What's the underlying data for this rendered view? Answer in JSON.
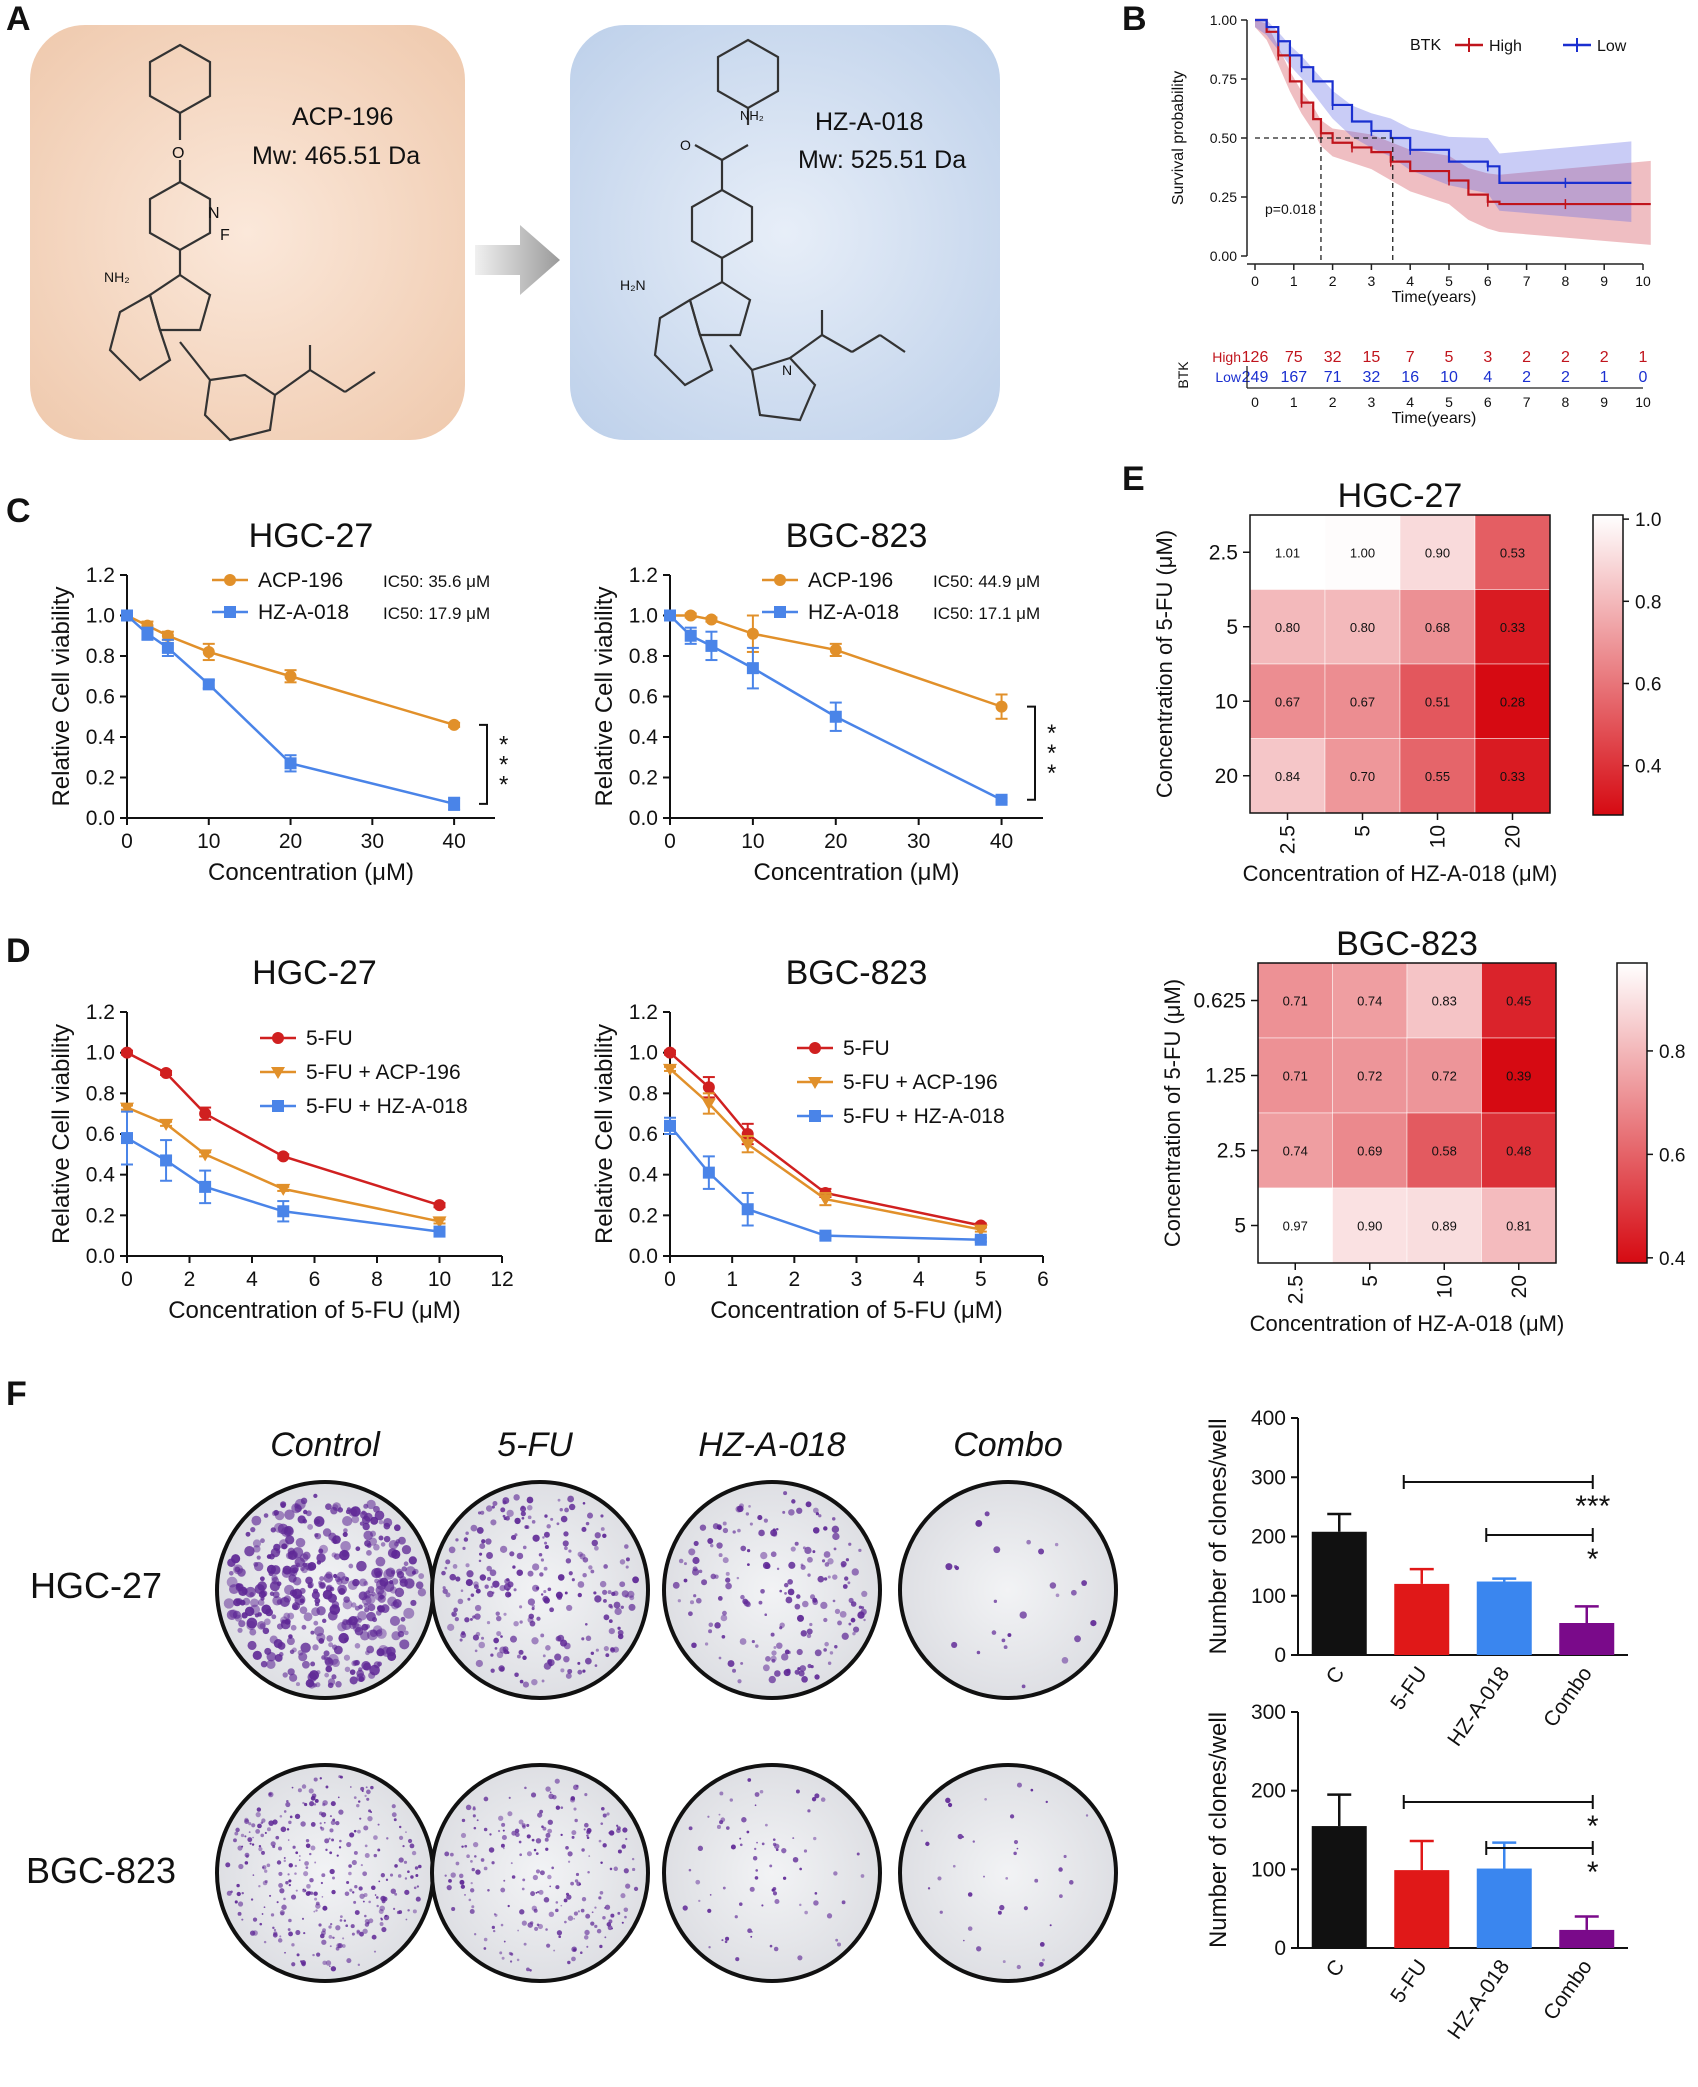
{
  "panels": {
    "A": "A",
    "B": "B",
    "C": "C",
    "D": "D",
    "E": "E",
    "F": "F"
  },
  "panelA": {
    "compound1": {
      "name": "ACP-196",
      "mw": "Mw: 465.51 Da",
      "o": "O",
      "f": "F",
      "nh2": "NH₂",
      "n": "N"
    },
    "compound2": {
      "name": "HZ-A-018",
      "mw": "Mw: 525.51 Da",
      "o": "O",
      "nh": "NH₂",
      "nh2": "H₂N",
      "n": "N"
    }
  },
  "chart_data": [
    {
      "id": "B",
      "type": "line",
      "title": "",
      "xlabel": "Time(years)",
      "ylabel": "Survival probability",
      "xlim": [
        0,
        10
      ],
      "ylim": [
        0,
        1
      ],
      "xticks": [
        "0",
        "1",
        "2",
        "3",
        "4",
        "5",
        "6",
        "7",
        "8",
        "9",
        "10"
      ],
      "yticks": [
        "0.00",
        "0.25",
        "0.50",
        "0.75",
        "1.00"
      ],
      "legend_title": "BTK",
      "pvalue": "p=0.018",
      "series": [
        {
          "name": "High",
          "color": "#c0141c",
          "x": [
            0,
            0.3,
            0.6,
            0.9,
            1.2,
            1.5,
            1.7,
            2.0,
            2.5,
            3.0,
            3.5,
            4.0,
            5.0,
            5.5,
            6.0,
            6.3,
            8,
            10.2
          ],
          "y": [
            1,
            0.95,
            0.85,
            0.74,
            0.65,
            0.58,
            0.52,
            0.48,
            0.46,
            0.44,
            0.4,
            0.36,
            0.32,
            0.26,
            0.23,
            0.22,
            0.22,
            0.22
          ]
        },
        {
          "name": "Low",
          "color": "#1a2fd0",
          "x": [
            0,
            0.3,
            0.6,
            0.9,
            1.2,
            1.5,
            2.0,
            2.5,
            3.0,
            3.5,
            4.0,
            5.0,
            6.0,
            6.3,
            8,
            9.7
          ],
          "y": [
            1,
            0.97,
            0.91,
            0.85,
            0.8,
            0.74,
            0.64,
            0.57,
            0.53,
            0.5,
            0.45,
            0.4,
            0.38,
            0.31,
            0.31,
            0.31
          ]
        }
      ],
      "risk_table": {
        "label": "BTK",
        "xlabel": "Time(years)",
        "rows": [
          {
            "name": "High",
            "values": [
              "126",
              "75",
              "32",
              "15",
              "7",
              "5",
              "3",
              "2",
              "2",
              "2",
              "1"
            ]
          },
          {
            "name": "Low",
            "values": [
              "249",
              "167",
              "71",
              "32",
              "16",
              "10",
              "4",
              "2",
              "2",
              "1",
              "0"
            ]
          }
        ]
      }
    },
    {
      "id": "C-HGC",
      "type": "line",
      "title": "HGC-27",
      "xlabel": "Concentration (μM)",
      "ylabel": "Relative Cell viability",
      "xlim": [
        0,
        45
      ],
      "ylim": [
        0,
        1.2
      ],
      "xticks": [
        "0",
        "10",
        "20",
        "30",
        "40"
      ],
      "yticks": [
        "0.0",
        "0.2",
        "0.4",
        "0.6",
        "0.8",
        "1.0",
        "1.2"
      ],
      "annotation": "* * *",
      "series": [
        {
          "name": "ACP-196",
          "ic50": "IC50: 35.6 μM",
          "color": "#e1902a",
          "marker": "circle",
          "x": [
            0,
            2.5,
            5,
            10,
            20,
            40
          ],
          "y": [
            1.0,
            0.95,
            0.9,
            0.82,
            0.7,
            0.46
          ],
          "err": [
            0.01,
            0.02,
            0.02,
            0.04,
            0.03,
            0.01
          ]
        },
        {
          "name": "HZ-A-018",
          "ic50": "IC50: 17.9 μM",
          "color": "#4a84e8",
          "marker": "square",
          "x": [
            0,
            2.5,
            5,
            10,
            20,
            40
          ],
          "y": [
            1.0,
            0.91,
            0.84,
            0.66,
            0.27,
            0.07
          ],
          "err": [
            0.01,
            0.03,
            0.04,
            0.02,
            0.04,
            0.03
          ]
        }
      ]
    },
    {
      "id": "C-BGC",
      "type": "line",
      "title": "BGC-823",
      "xlabel": "Concentration (μM)",
      "ylabel": "Relative Cell viability",
      "xlim": [
        0,
        45
      ],
      "ylim": [
        0,
        1.2
      ],
      "xticks": [
        "0",
        "10",
        "20",
        "30",
        "40"
      ],
      "yticks": [
        "0.0",
        "0.2",
        "0.4",
        "0.6",
        "0.8",
        "1.0",
        "1.2"
      ],
      "annotation": "* * *",
      "series": [
        {
          "name": "ACP-196",
          "ic50": "IC50: 44.9 μM",
          "color": "#e1902a",
          "marker": "circle",
          "x": [
            0,
            2.5,
            5,
            10,
            20,
            40
          ],
          "y": [
            1.0,
            1.0,
            0.98,
            0.91,
            0.83,
            0.55
          ],
          "err": [
            0.01,
            0.01,
            0.01,
            0.09,
            0.03,
            0.06
          ]
        },
        {
          "name": "HZ-A-018",
          "ic50": "IC50: 17.1 μM",
          "color": "#4a84e8",
          "marker": "square",
          "x": [
            0,
            2.5,
            5,
            10,
            20,
            40
          ],
          "y": [
            1.0,
            0.9,
            0.85,
            0.74,
            0.5,
            0.09
          ],
          "err": [
            0.01,
            0.04,
            0.07,
            0.1,
            0.07,
            0.01
          ]
        }
      ]
    },
    {
      "id": "D-HGC",
      "type": "line",
      "title": "HGC-27",
      "xlabel": "Concentration of 5-FU (μM)",
      "ylabel": "Relative Cell viability",
      "xlim": [
        0,
        12
      ],
      "ylim": [
        0,
        1.2
      ],
      "xticks": [
        "0",
        "2",
        "4",
        "6",
        "8",
        "10",
        "12"
      ],
      "yticks": [
        "0.0",
        "0.2",
        "0.4",
        "0.6",
        "0.8",
        "1.0",
        "1.2"
      ],
      "series": [
        {
          "name": "5-FU",
          "color": "#d02020",
          "marker": "circle",
          "x": [
            0,
            1.25,
            2.5,
            5,
            10
          ],
          "y": [
            1.0,
            0.9,
            0.7,
            0.49,
            0.25
          ],
          "err": [
            0.01,
            0.01,
            0.03,
            0.01,
            0.01
          ]
        },
        {
          "name": "5-FU + ACP-196",
          "color": "#e1902a",
          "marker": "tri",
          "x": [
            0,
            1.25,
            2.5,
            5,
            10
          ],
          "y": [
            0.73,
            0.65,
            0.5,
            0.33,
            0.17
          ],
          "err": [
            0.01,
            0.01,
            0.01,
            0.01,
            0.01
          ]
        },
        {
          "name": "5-FU + HZ-A-018",
          "color": "#4a84e8",
          "marker": "square",
          "x": [
            0,
            1.25,
            2.5,
            5,
            10
          ],
          "y": [
            0.58,
            0.47,
            0.34,
            0.22,
            0.12
          ],
          "err": [
            0.13,
            0.1,
            0.08,
            0.05,
            0.01
          ]
        }
      ]
    },
    {
      "id": "D-BGC",
      "type": "line",
      "title": "BGC-823",
      "xlabel": "Concentration of 5-FU (μM)",
      "ylabel": "Relative Cell viability",
      "xlim": [
        0,
        6
      ],
      "ylim": [
        0,
        1.2
      ],
      "xticks": [
        "0",
        "1",
        "2",
        "3",
        "4",
        "5",
        "6"
      ],
      "yticks": [
        "0.0",
        "0.2",
        "0.4",
        "0.6",
        "0.8",
        "1.0",
        "1.2"
      ],
      "series": [
        {
          "name": "5-FU",
          "color": "#d02020",
          "marker": "circle",
          "x": [
            0,
            0.625,
            1.25,
            2.5,
            5
          ],
          "y": [
            1.0,
            0.83,
            0.6,
            0.31,
            0.15
          ],
          "err": [
            0.01,
            0.05,
            0.05,
            0.02,
            0.01
          ]
        },
        {
          "name": "5-FU + ACP-196",
          "color": "#e1902a",
          "marker": "tri",
          "x": [
            0,
            0.625,
            1.25,
            2.5,
            5
          ],
          "y": [
            0.92,
            0.75,
            0.55,
            0.28,
            0.13
          ],
          "err": [
            0.01,
            0.05,
            0.04,
            0.03,
            0.01
          ]
        },
        {
          "name": "5-FU + HZ-A-018",
          "color": "#4a84e8",
          "marker": "square",
          "x": [
            0,
            0.625,
            1.25,
            2.5,
            5
          ],
          "y": [
            0.64,
            0.41,
            0.23,
            0.1,
            0.08
          ],
          "err": [
            0.04,
            0.08,
            0.08,
            0.01,
            0.01
          ]
        }
      ]
    },
    {
      "id": "E-HGC",
      "type": "heatmap",
      "title": "HGC-27",
      "xlabel": "Concentration of HZ-A-018 (μM)",
      "ylabel": "Concentration of 5-FU (μM)",
      "xcats": [
        "2.5",
        "5",
        "10",
        "20"
      ],
      "ycats": [
        "2.5",
        "5",
        "10",
        "20"
      ],
      "values": [
        [
          "1.01",
          "1.00",
          "0.90",
          "0.53"
        ],
        [
          "0.80",
          "0.80",
          "0.68",
          "0.33"
        ],
        [
          "0.67",
          "0.67",
          "0.51",
          "0.28"
        ],
        [
          "0.84",
          "0.70",
          "0.55",
          "0.33"
        ]
      ],
      "vmin": 0.28,
      "vmax": 1.01,
      "colorbar_ticks": [
        "1.0",
        "0.8",
        "0.6",
        "0.4"
      ],
      "colorbar_vals": [
        1.0,
        0.8,
        0.6,
        0.4
      ]
    },
    {
      "id": "E-BGC",
      "type": "heatmap",
      "title": "BGC-823",
      "xlabel": "Concentration of HZ-A-018 (μM)",
      "ylabel": "Concentration of 5-FU (μM)",
      "xcats": [
        "2.5",
        "5",
        "10",
        "20"
      ],
      "ycats": [
        "0.625",
        "1.25",
        "2.5",
        "5"
      ],
      "values": [
        [
          "0.71",
          "0.74",
          "0.83",
          "0.45"
        ],
        [
          "0.71",
          "0.72",
          "0.72",
          "0.39"
        ],
        [
          "0.74",
          "0.69",
          "0.58",
          "0.48"
        ],
        [
          "0.97",
          "0.90",
          "0.89",
          "0.81"
        ]
      ],
      "vmin": 0.39,
      "vmax": 0.97,
      "colorbar_ticks": [
        "0.8",
        "0.6",
        "0.4"
      ],
      "colorbar_vals": [
        0.8,
        0.6,
        0.4
      ]
    },
    {
      "id": "F-HGC",
      "type": "bar",
      "title": "",
      "categories": [
        "C",
        "5-FU",
        "HZ-A-018",
        "Combo"
      ],
      "values": [
        208,
        120,
        124,
        54
      ],
      "err": [
        30,
        25,
        5,
        28
      ],
      "colors": [
        "#111111",
        "#e01818",
        "#3a86ef",
        "#7a0a8a"
      ],
      "ylabel": "Number of clones/well",
      "ylim": [
        0,
        400
      ],
      "yticks": [
        "0",
        "100",
        "200",
        "300",
        "400"
      ],
      "sig": [
        {
          "from": 1,
          "to": 3,
          "label": "***"
        },
        {
          "from": 2,
          "to": 3,
          "label": "*"
        }
      ]
    },
    {
      "id": "F-BGC",
      "type": "bar",
      "title": "",
      "categories": [
        "C",
        "5-FU",
        "HZ-A-018",
        "Combo"
      ],
      "values": [
        155,
        99,
        101,
        23
      ],
      "err": [
        40,
        37,
        33,
        17
      ],
      "colors": [
        "#111111",
        "#e01818",
        "#3a86ef",
        "#7a0a8a"
      ],
      "ylabel": "Number of clones/well",
      "ylim": [
        0,
        300
      ],
      "yticks": [
        "0",
        "100",
        "200",
        "300"
      ],
      "sig": [
        {
          "from": 1,
          "to": 3,
          "label": "*"
        },
        {
          "from": 2,
          "to": 3,
          "label": "*"
        }
      ]
    }
  ],
  "panelF": {
    "conditions": [
      "Control",
      "5-FU",
      "HZ-A-018",
      "Combo"
    ],
    "cell_lines": [
      "HGC-27",
      "BGC-823"
    ]
  }
}
